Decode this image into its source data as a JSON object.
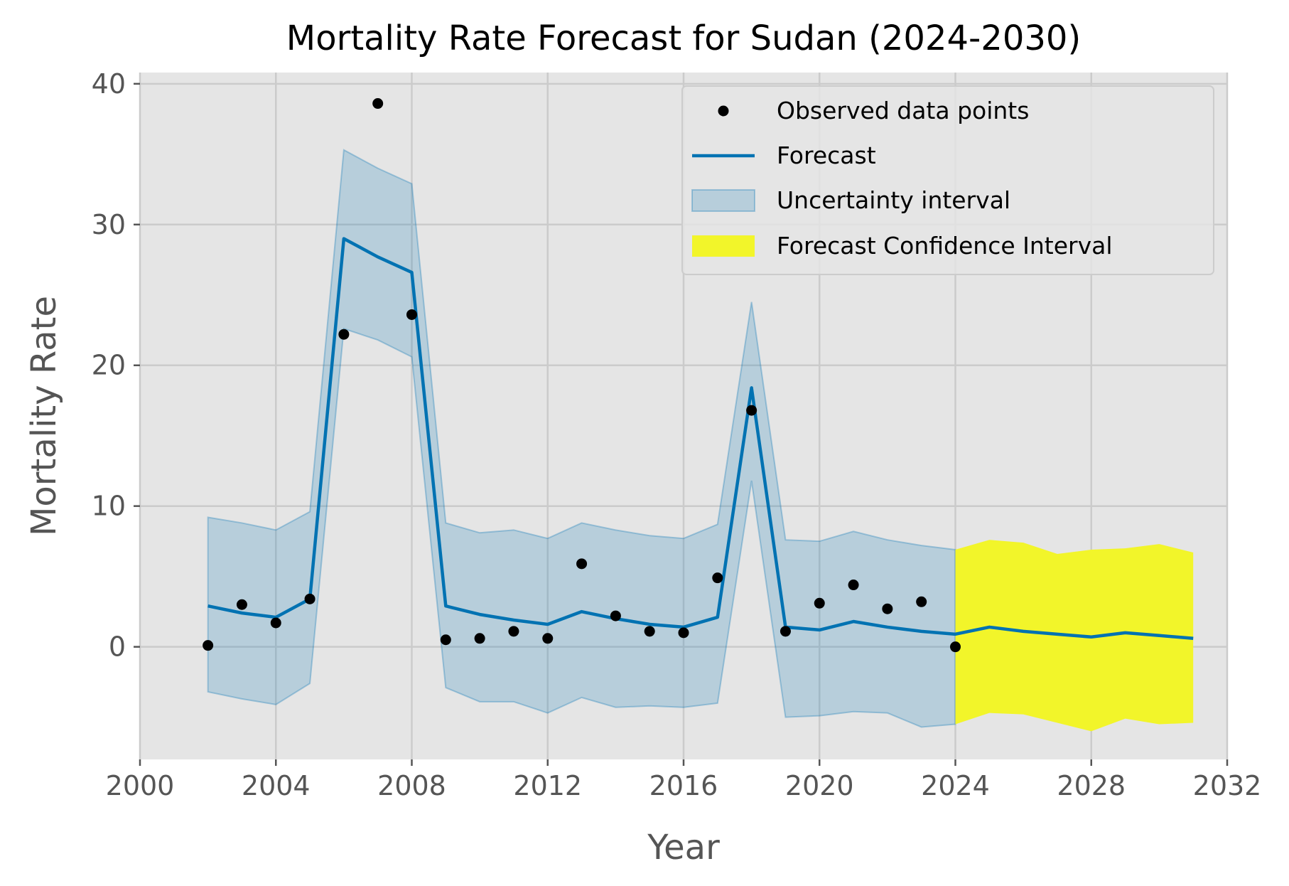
{
  "chart_data": {
    "type": "line",
    "title": "Mortality Rate Forecast for Sudan (2024-2030)",
    "xlabel": "Year",
    "ylabel": "Mortality Rate",
    "xlim": [
      2000,
      2032
    ],
    "ylim": [
      -8,
      40.8
    ],
    "x_ticks": [
      2000,
      2004,
      2008,
      2012,
      2016,
      2020,
      2024,
      2028,
      2032
    ],
    "y_ticks": [
      0,
      10,
      20,
      30,
      40
    ],
    "grid": true,
    "legend_position": "top-right",
    "legend": [
      {
        "label": "Observed data points",
        "kind": "marker"
      },
      {
        "label": "Forecast",
        "kind": "line"
      },
      {
        "label": "Uncertainty interval",
        "kind": "band"
      },
      {
        "label": "Forecast Confidence Interval",
        "kind": "band-forecast"
      }
    ],
    "colors": {
      "background": "#e5e5e5",
      "grid": "#cbcbcb",
      "observed": "#000000",
      "forecast_line": "#0072b2",
      "uncertainty_fill": "#0072b2",
      "confidence_fill": "#f2f52a"
    },
    "observed": {
      "name": "Observed data points",
      "x": [
        2002,
        2003,
        2004,
        2005,
        2006,
        2007,
        2008,
        2009,
        2010,
        2011,
        2012,
        2013,
        2014,
        2015,
        2016,
        2017,
        2018,
        2019,
        2020,
        2021,
        2022,
        2023,
        2024
      ],
      "y": [
        0.1,
        3.0,
        1.7,
        3.4,
        22.2,
        38.6,
        23.6,
        0.5,
        0.6,
        1.1,
        0.6,
        5.9,
        2.2,
        1.1,
        1.0,
        4.9,
        16.8,
        1.1,
        3.1,
        4.4,
        2.7,
        3.2,
        0.0
      ]
    },
    "forecast": {
      "name": "Forecast",
      "x": [
        2002,
        2003,
        2004,
        2005,
        2006,
        2007,
        2008,
        2009,
        2010,
        2011,
        2012,
        2013,
        2014,
        2015,
        2016,
        2017,
        2018,
        2019,
        2020,
        2021,
        2022,
        2023,
        2024,
        2025,
        2026,
        2027,
        2028,
        2029,
        2030,
        2031
      ],
      "y": [
        2.9,
        2.4,
        2.1,
        3.4,
        29.0,
        27.7,
        26.6,
        2.9,
        2.3,
        1.9,
        1.6,
        2.5,
        2.0,
        1.6,
        1.4,
        2.1,
        18.4,
        1.4,
        1.2,
        1.8,
        1.4,
        1.1,
        0.9,
        1.4,
        1.1,
        0.9,
        0.7,
        1.0,
        0.8,
        0.6
      ]
    },
    "uncertainty_interval": {
      "name": "Uncertainty interval",
      "x": [
        2002,
        2003,
        2004,
        2005,
        2006,
        2007,
        2008,
        2009,
        2010,
        2011,
        2012,
        2013,
        2014,
        2015,
        2016,
        2017,
        2018,
        2019,
        2020,
        2021,
        2022,
        2023,
        2024
      ],
      "lower": [
        -3.2,
        -3.7,
        -4.1,
        -2.6,
        22.6,
        21.8,
        20.6,
        -2.9,
        -3.9,
        -3.9,
        -4.7,
        -3.6,
        -4.3,
        -4.2,
        -4.3,
        -4.0,
        11.8,
        -5.0,
        -4.9,
        -4.6,
        -4.7,
        -5.7,
        -5.5
      ],
      "upper": [
        9.2,
        8.8,
        8.3,
        9.6,
        35.3,
        34.0,
        32.9,
        8.8,
        8.1,
        8.3,
        7.7,
        8.8,
        8.3,
        7.9,
        7.7,
        8.7,
        24.5,
        7.6,
        7.5,
        8.2,
        7.6,
        7.2,
        6.9
      ]
    },
    "forecast_confidence_interval": {
      "name": "Forecast Confidence Interval",
      "x": [
        2024,
        2025,
        2026,
        2027,
        2028,
        2029,
        2030,
        2031
      ],
      "lower": [
        -5.5,
        -4.7,
        -4.8,
        -5.4,
        -6.0,
        -5.1,
        -5.5,
        -5.4
      ],
      "upper": [
        6.9,
        7.6,
        7.4,
        6.6,
        6.9,
        7.0,
        7.3,
        6.7
      ]
    }
  }
}
